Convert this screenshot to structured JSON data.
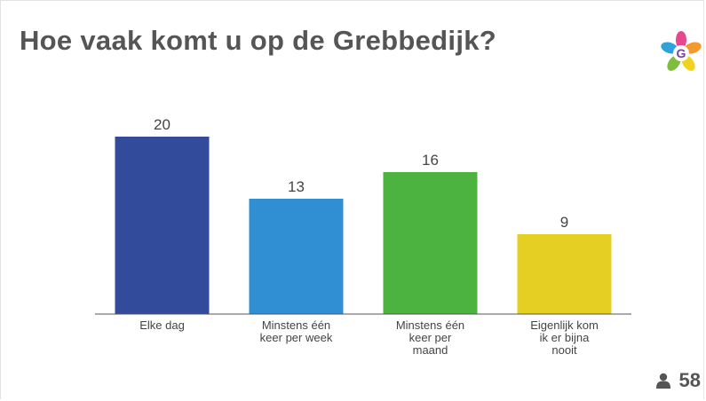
{
  "title": "Hoe vaak komt u op de Grebbedijk?",
  "logo": {
    "icon": "grebbedijk-flower-logo-icon",
    "letter": "G"
  },
  "respondents": {
    "icon": "person-icon",
    "count": "58"
  },
  "colors": {
    "baseline": "#555555",
    "text": "#444444"
  },
  "chart_data": {
    "type": "bar",
    "title": "Hoe vaak komt u op de Grebbedijk?",
    "categories": [
      "Elke dag",
      "Minstens één keer per week",
      "Minstens één keer per maand",
      "Eigenlijk kom ik er bijna nooit"
    ],
    "category_lines": [
      [
        "Elke dag"
      ],
      [
        "Minstens één",
        "keer per week"
      ],
      [
        "Minstens één",
        "keer per",
        "maand"
      ],
      [
        "Eigenlijk kom",
        "ik er bijna",
        "nooit"
      ]
    ],
    "values": [
      20,
      13,
      16,
      9
    ],
    "value_labels": [
      "20",
      "13",
      "16",
      "9"
    ],
    "colors": [
      "#334B9B",
      "#2F8FD2",
      "#4DB340",
      "#E5CF22"
    ],
    "ylim": [
      0,
      20
    ],
    "xlabel": "",
    "ylabel": "",
    "grid": false,
    "legend": "none"
  }
}
